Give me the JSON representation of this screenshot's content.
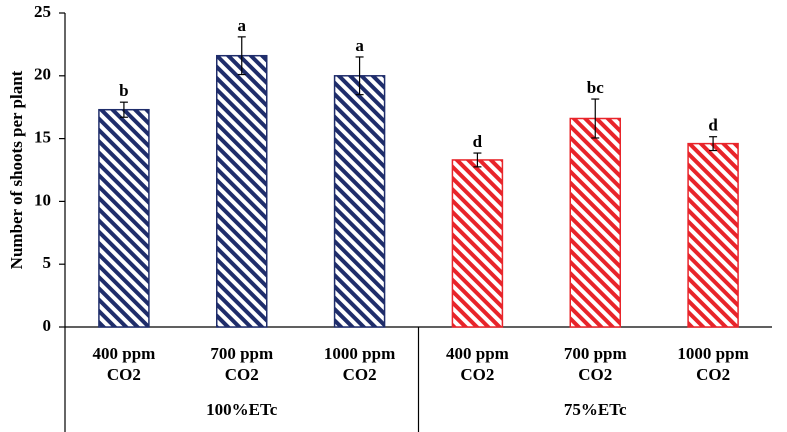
{
  "chart_data": {
    "type": "bar",
    "y_label": "Number of shoots per plant",
    "categories": [
      [
        "400 ppm",
        "CO2"
      ],
      [
        "700 ppm",
        "CO2"
      ],
      [
        "1000 ppm",
        "CO2"
      ],
      [
        "400 ppm",
        "CO2"
      ],
      [
        "700 ppm",
        "CO2"
      ],
      [
        "1000 ppm",
        "CO2"
      ]
    ],
    "groups": [
      {
        "label": "100%ETc",
        "size": 3
      },
      {
        "label": "75%ETc",
        "size": 3
      }
    ],
    "values": [
      17.3,
      21.6,
      20.0,
      13.3,
      16.6,
      14.6
    ],
    "errors": [
      0.6,
      1.5,
      1.5,
      0.55,
      1.55,
      0.55
    ],
    "annotations": [
      "b",
      "a",
      "a",
      "d",
      "bc",
      "d"
    ],
    "colors": [
      "#1f2d6b",
      "#1f2d6b",
      "#1f2d6b",
      "#e8242a",
      "#e8242a",
      "#e8242a"
    ],
    "hatch": true,
    "ylim": [
      0,
      25
    ],
    "yticks": [
      0,
      5,
      10,
      15,
      20,
      25
    ]
  }
}
